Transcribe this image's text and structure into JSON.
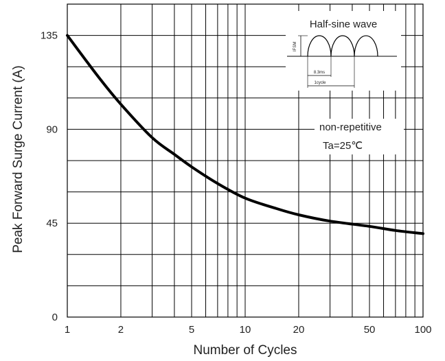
{
  "chart_data": {
    "type": "line",
    "title": "",
    "xlabel": "Number of Cycles",
    "ylabel": "Peak Forward Surge Current (A)",
    "x_scale": "log",
    "xlim": [
      1,
      100
    ],
    "ylim": [
      0,
      150
    ],
    "x_ticks": [
      1,
      2,
      5,
      10,
      20,
      50,
      100
    ],
    "x_tick_labels": [
      "1",
      "2",
      "5",
      "10",
      "20",
      "50",
      "100"
    ],
    "y_ticks": [
      0,
      45,
      90,
      135
    ],
    "y_tick_labels": [
      "0",
      "45",
      "90",
      "135"
    ],
    "grid": true,
    "series": [
      {
        "x": [
          1,
          1.5,
          2,
          3,
          4,
          5,
          7,
          10,
          15,
          20,
          30,
          50,
          70,
          100
        ],
        "y": [
          135,
          115,
          102,
          86,
          78,
          72,
          64,
          57,
          52,
          49,
          46,
          43.5,
          41.5,
          40
        ]
      }
    ],
    "color": "#000000",
    "annotations": [
      "non-repetitive",
      "Ta=25℃"
    ],
    "inset": {
      "title": "Half-sine wave",
      "labels": [
        "IFSM",
        "8.3ms",
        "1cycle"
      ]
    }
  }
}
